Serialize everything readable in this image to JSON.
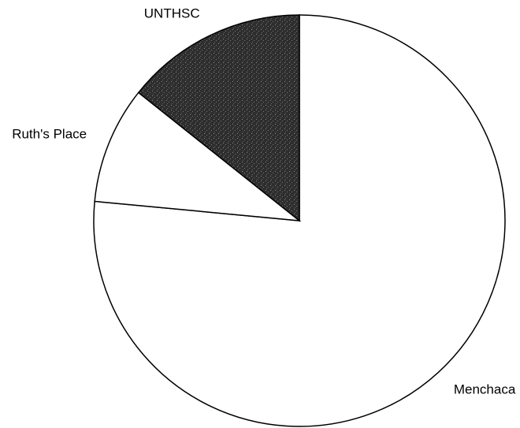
{
  "chart_data": {
    "type": "pie",
    "categories": [
      "Menchaca",
      "Ruth's Place",
      "UNTHSC"
    ],
    "values": [
      76.5,
      9.2,
      14.3
    ],
    "colors": [
      "#ffffff",
      "#ffffff",
      "#3a3a3a"
    ]
  }
}
